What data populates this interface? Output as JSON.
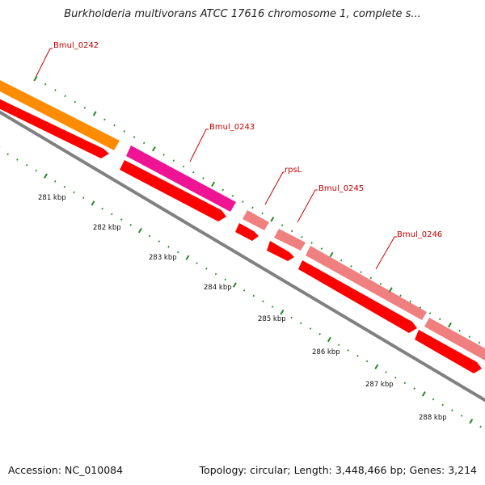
{
  "title": "Burkholderia multivorans ATCC 17616 chromosome 1, complete s...",
  "footer": {
    "accession": "Accession: NC_010084",
    "summary": "Topology: circular; Length: 3,448,466 bp; Genes: 3,214"
  },
  "ticks": [
    {
      "label": "281 kbp"
    },
    {
      "label": "282 kbp"
    },
    {
      "label": "283 kbp"
    },
    {
      "label": "284 kbp"
    },
    {
      "label": "285 kbp"
    },
    {
      "label": "286 kbp"
    },
    {
      "label": "287 kbp"
    },
    {
      "label": "288 kbp"
    }
  ],
  "genes": [
    {
      "label": "Bmul_0242",
      "color": "#ff8c00"
    },
    {
      "label": "Bmul_0243",
      "color": "#ee1493"
    },
    {
      "label": "rpsL",
      "color": "#f08080"
    },
    {
      "label": "Bmul_0245",
      "color": "#f08080"
    },
    {
      "label": "Bmul_0246",
      "color": "#f08080"
    }
  ],
  "colors": {
    "cds": "#ff0000",
    "backbone": "#808080",
    "tick": "#228b22",
    "label_line": "#cc0000"
  }
}
